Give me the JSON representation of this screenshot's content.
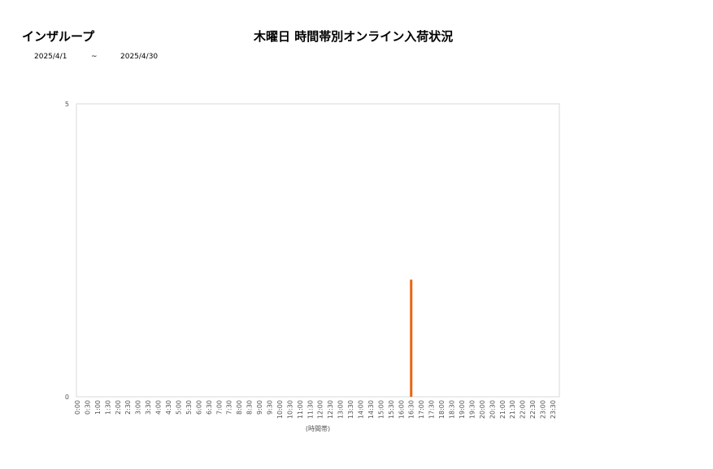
{
  "header": {
    "brand": "インザループ",
    "title": "木曜日 時間帯別オンライン入荷状況",
    "date_from": "2025/4/1",
    "tilde": "~",
    "date_to": "2025/4/30"
  },
  "chart_data": {
    "type": "bar",
    "title": "木曜日 時間帯別オンライン入荷状況",
    "xlabel": "(時間帯)",
    "ylabel": "",
    "ylim": [
      0,
      5
    ],
    "yticks": [
      0,
      5
    ],
    "grid": false,
    "bar_color": "#E8650F",
    "categories": [
      "0:00",
      "0:30",
      "1:00",
      "1:30",
      "2:00",
      "2:30",
      "3:00",
      "3:30",
      "4:00",
      "4:30",
      "5:00",
      "5:30",
      "6:00",
      "6:30",
      "7:00",
      "7:30",
      "8:00",
      "8:30",
      "9:00",
      "9:30",
      "10:00",
      "10:30",
      "11:00",
      "11:30",
      "12:00",
      "12:30",
      "13:00",
      "13:30",
      "14:00",
      "14:30",
      "15:00",
      "15:30",
      "16:00",
      "16:30",
      "17:00",
      "17:30",
      "18:00",
      "18:30",
      "19:00",
      "19:30",
      "20:00",
      "20:30",
      "21:00",
      "21:30",
      "22:00",
      "22:30",
      "23:00",
      "23:30"
    ],
    "values": [
      0,
      0,
      0,
      0,
      0,
      0,
      0,
      0,
      0,
      0,
      0,
      0,
      0,
      0,
      0,
      0,
      0,
      0,
      0,
      0,
      0,
      0,
      0,
      0,
      0,
      0,
      0,
      0,
      0,
      0,
      0,
      0,
      0,
      2,
      0,
      0,
      0,
      0,
      0,
      0,
      0,
      0,
      0,
      0,
      0,
      0,
      0,
      0
    ]
  }
}
